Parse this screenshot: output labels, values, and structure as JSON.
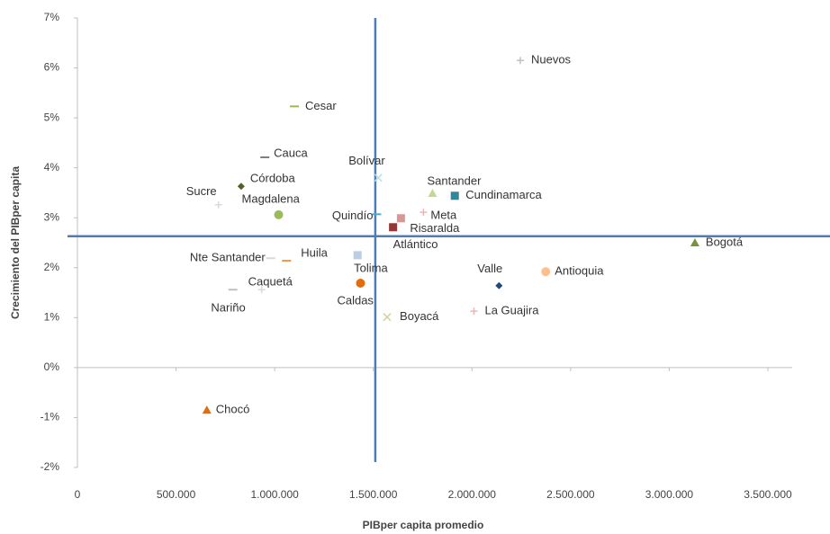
{
  "chart_data": {
    "type": "scatter",
    "xlabel": "PIBper capita promedio",
    "ylabel": "Crecimiento del PIBper capita",
    "xlim": [
      0,
      3500000
    ],
    "ylim": [
      -2,
      7
    ],
    "xticks": [
      0,
      {
        "value": 500000,
        "label": "500.000"
      },
      {
        "value": 1000000,
        "label": "1.000.000"
      },
      {
        "value": 1500000,
        "label": "1.500.000"
      },
      {
        "value": 2000000,
        "label": "2.000.000"
      },
      {
        "value": 2500000,
        "label": "2.500.000"
      },
      {
        "value": 3000000,
        "label": "3.000.000"
      },
      {
        "value": 3500000,
        "label": "3.500.000"
      }
    ],
    "yticks": [
      {
        "value": -2,
        "label": "-2%"
      },
      {
        "value": -1,
        "label": "-1%"
      },
      {
        "value": 0,
        "label": "0%"
      },
      {
        "value": 1,
        "label": "1%"
      },
      {
        "value": 2,
        "label": "2%"
      },
      {
        "value": 3,
        "label": "3%"
      },
      {
        "value": 4,
        "label": "4%"
      },
      {
        "value": 5,
        "label": "5%"
      },
      {
        "value": 6,
        "label": "6%"
      },
      {
        "value": 7,
        "label": "7%"
      }
    ],
    "reference_x": 1510000,
    "reference_y": 2.63,
    "reference_color": "#4a7ebb",
    "points": [
      {
        "label": "Nuevos",
        "x": 2245000,
        "y": 6.15,
        "color": "#c0c0c0",
        "marker": "plus"
      },
      {
        "label": "Cesar",
        "x": 1100000,
        "y": 5.23,
        "color": "#9bbb59",
        "marker": "dash"
      },
      {
        "label": "Cauca",
        "x": 950000,
        "y": 4.21,
        "color": "#7f7f7f",
        "marker": "dash"
      },
      {
        "label": "Córdoba",
        "x": 830000,
        "y": 3.63,
        "color": "#4f6228",
        "marker": "diamond"
      },
      {
        "label": "Sucre",
        "x": 715000,
        "y": 3.26,
        "color": "#d9d9d9",
        "marker": "plus"
      },
      {
        "label": "Magdalena",
        "x": 1020000,
        "y": 3.06,
        "color": "#9bbb59",
        "marker": "circle"
      },
      {
        "label": "Bolívar",
        "x": 1525000,
        "y": 3.8,
        "color": "#b7dee8",
        "marker": "x"
      },
      {
        "label": "Quindío",
        "x": 1517000,
        "y": 3.07,
        "color": "#4bacc6",
        "marker": "dash"
      },
      {
        "label": "Santander",
        "x": 1800000,
        "y": 3.49,
        "color": "#c3d69b",
        "marker": "triangle"
      },
      {
        "label": "Cundinamarca",
        "x": 1913000,
        "y": 3.44,
        "color": "#31859c",
        "marker": "square"
      },
      {
        "label": "Meta",
        "x": 1754000,
        "y": 3.11,
        "color": "#e6b9b8",
        "marker": "plus"
      },
      {
        "label": "Risaralda",
        "x": 1640000,
        "y": 2.99,
        "color": "#d99694",
        "marker": "square"
      },
      {
        "label": "Atlántico",
        "x": 1600000,
        "y": 2.81,
        "color": "#953735",
        "marker": "square"
      },
      {
        "label": "Bogotá",
        "x": 3130000,
        "y": 2.5,
        "color": "#77933c",
        "marker": "triangle"
      },
      {
        "label": "Nte Santander",
        "x": 980000,
        "y": 2.19,
        "color": "#d9d9d9",
        "marker": "dash"
      },
      {
        "label": "Huila",
        "x": 1060000,
        "y": 2.14,
        "color": "#f79646",
        "marker": "dash"
      },
      {
        "label": "Tolima",
        "x": 1420000,
        "y": 2.25,
        "color": "#b9cde5",
        "marker": "square"
      },
      {
        "label": "Caquetá",
        "x": 934000,
        "y": 1.56,
        "color": "#d9d9d9",
        "marker": "plus"
      },
      {
        "label": "Nariño",
        "x": 788000,
        "y": 1.56,
        "color": "#c0c0c0",
        "marker": "dash"
      },
      {
        "label": "Caldas",
        "x": 1435000,
        "y": 1.69,
        "color": "#e46c0a",
        "marker": "circle"
      },
      {
        "label": "Valle",
        "x": 2137000,
        "y": 1.64,
        "color": "#1f497d",
        "marker": "diamond"
      },
      {
        "label": "Antioquia",
        "x": 2374000,
        "y": 1.92,
        "color": "#fac090",
        "marker": "circle"
      },
      {
        "label": "La Guajira",
        "x": 2010000,
        "y": 1.13,
        "color": "#e6b9b8",
        "marker": "plus"
      },
      {
        "label": "Boyacá",
        "x": 1570000,
        "y": 1.01,
        "color": "#c3d69b",
        "marker": "x"
      },
      {
        "label": "Chocó",
        "x": 656000,
        "y": -0.85,
        "color": "#e46c0a",
        "marker": "triangle"
      }
    ]
  }
}
